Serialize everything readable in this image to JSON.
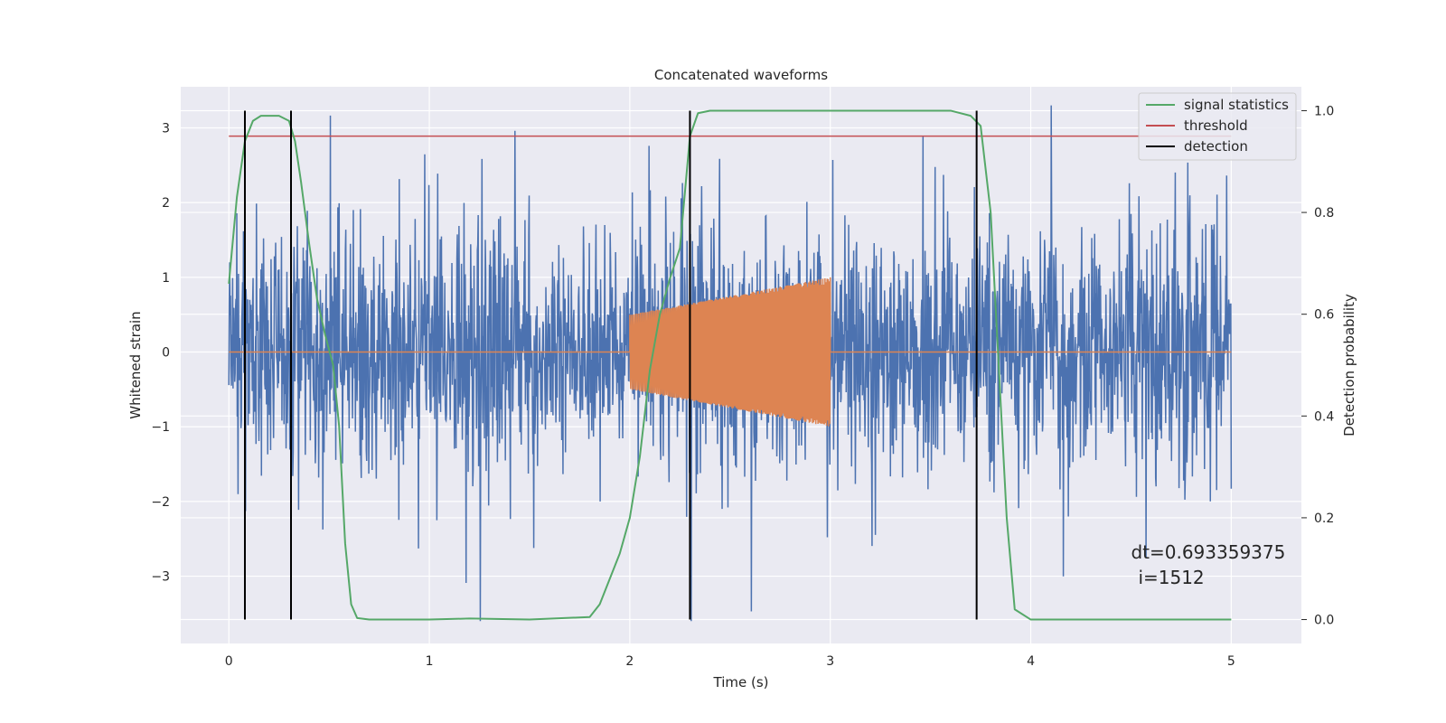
{
  "chart_data": {
    "type": "line",
    "title": "Concatenated waveforms",
    "xlabel": "Time (s)",
    "ylabel": "Whitened strain",
    "y2label": "Detection probability",
    "xlim": [
      -0.24,
      5.35
    ],
    "ylim": [
      -3.9,
      3.55
    ],
    "y2lim": [
      -0.047,
      1.047
    ],
    "xticks": [
      0,
      1,
      2,
      3,
      4,
      5
    ],
    "yticks": [
      -3,
      -2,
      -1,
      0,
      1,
      2,
      3
    ],
    "y2ticks": [
      0.0,
      0.2,
      0.4,
      0.6,
      0.8,
      1.0
    ],
    "xtick_labels": [
      "0",
      "1",
      "2",
      "3",
      "4",
      "5"
    ],
    "ytick_labels": [
      "−3",
      "−2",
      "−1",
      "0",
      "1",
      "2",
      "3"
    ],
    "y2tick_labels": [
      "0.0",
      "0.2",
      "0.4",
      "0.6",
      "0.8",
      "1.0"
    ],
    "grid": true,
    "legend_position": "top-right",
    "colors": {
      "strain": "#4c72b0",
      "template": "#dd8452",
      "signal": "#55a868",
      "threshold": "#c44e52",
      "detection": "#000000",
      "background": "#eaeaf2"
    },
    "strain": {
      "x_range": [
        0,
        5
      ],
      "typical_amplitude": 0.8,
      "peak_range": [
        -3.6,
        3.35
      ]
    },
    "template": {
      "x_range": [
        2.0,
        3.0
      ],
      "amplitude_start": 0.5,
      "amplitude_end": 1.0,
      "baseline": 0
    },
    "series": [
      {
        "name": "signal statistics",
        "axis": "right",
        "x": [
          0.0,
          0.04,
          0.08,
          0.12,
          0.16,
          0.2,
          0.25,
          0.3,
          0.33,
          0.36,
          0.4,
          0.44,
          0.48,
          0.52,
          0.55,
          0.58,
          0.61,
          0.64,
          0.7,
          1.0,
          1.2,
          1.5,
          1.8,
          1.85,
          1.9,
          1.95,
          2.0,
          2.05,
          2.1,
          2.15,
          2.2,
          2.25,
          2.3,
          2.34,
          2.4,
          3.0,
          3.6,
          3.7,
          3.75,
          3.8,
          3.84,
          3.88,
          3.92,
          4.0,
          4.5,
          5.0
        ],
        "y": [
          0.66,
          0.83,
          0.94,
          0.98,
          0.99,
          0.99,
          0.99,
          0.98,
          0.94,
          0.86,
          0.74,
          0.63,
          0.56,
          0.5,
          0.38,
          0.15,
          0.03,
          0.003,
          0.0,
          0.0,
          0.002,
          0.0,
          0.005,
          0.03,
          0.08,
          0.13,
          0.2,
          0.32,
          0.49,
          0.6,
          0.67,
          0.73,
          0.95,
          0.995,
          1.0,
          1.0,
          1.0,
          0.99,
          0.97,
          0.8,
          0.5,
          0.2,
          0.02,
          0.0,
          0.0,
          0.0
        ]
      },
      {
        "name": "threshold",
        "axis": "right",
        "x": [
          0.0,
          5.0
        ],
        "y": [
          0.95,
          0.95
        ]
      },
      {
        "name": "detection",
        "axis": "right",
        "x": [
          0.08,
          0.31,
          2.3,
          3.73
        ],
        "y_range": [
          0.0,
          1.0
        ]
      }
    ],
    "annotation": {
      "line1": "dt=0.693359375",
      "line2": "i=1512",
      "x": 4.5,
      "y2": 0.12
    },
    "legend": [
      "signal statistics",
      "threshold",
      "detection"
    ]
  }
}
